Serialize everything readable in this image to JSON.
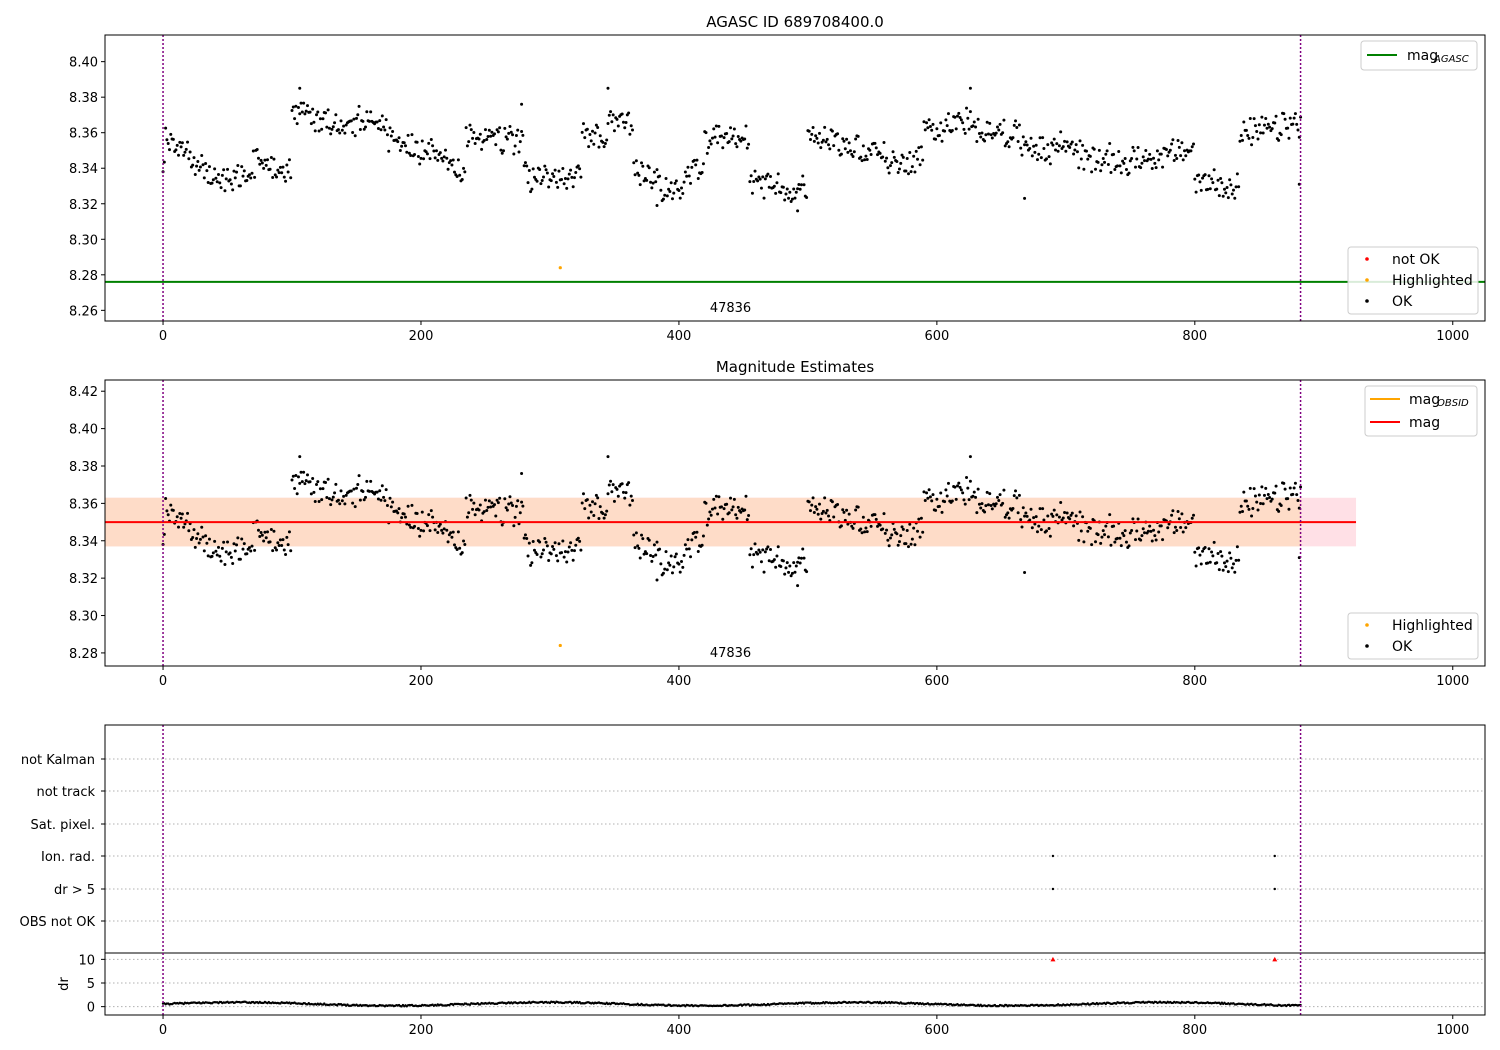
{
  "chart_data": [
    {
      "type": "scatter",
      "title": "AGASC ID 689708400.0",
      "xlim": [
        -45,
        1025
      ],
      "ylim": [
        8.254,
        8.415
      ],
      "xticks": [
        0,
        200,
        400,
        600,
        800,
        1000
      ],
      "yticks": [
        8.26,
        8.28,
        8.3,
        8.32,
        8.34,
        8.36,
        8.38,
        8.4
      ],
      "vlines": [
        0,
        882
      ],
      "hline": {
        "name": "mag",
        "sub": "AGASC",
        "value": 8.276,
        "color": "#008000"
      },
      "annotation": {
        "text": "47836",
        "x": 440,
        "y": 8.258
      },
      "legend_upper": [
        {
          "label": "mag",
          "sub": "AGASC",
          "color": "#008000"
        }
      ],
      "legend_lower": [
        {
          "label": "not OK",
          "color": "#ff0000"
        },
        {
          "label": "Highlighted",
          "color": "#ffa500"
        },
        {
          "label": "OK",
          "color": "#000000"
        }
      ],
      "highlighted": [
        [
          308,
          8.284
        ]
      ]
    },
    {
      "type": "scatter",
      "title": "Magnitude Estimates",
      "xlim": [
        -45,
        1025
      ],
      "ylim": [
        8.273,
        8.426
      ],
      "xticks": [
        0,
        200,
        400,
        600,
        800,
        1000
      ],
      "yticks": [
        8.28,
        8.3,
        8.32,
        8.34,
        8.36,
        8.38,
        8.4,
        8.42
      ],
      "vlines": [
        0,
        882
      ],
      "band_outer": {
        "x": [
          -45,
          925
        ],
        "y": [
          8.337,
          8.363
        ],
        "color": "#ffe0e6"
      },
      "band_inner": {
        "x": [
          -45,
          882
        ],
        "y": [
          8.337,
          8.363
        ],
        "color": "#fedcc8"
      },
      "hlines": [
        {
          "name": "mag",
          "value": 8.35,
          "color": "#ff0000"
        }
      ],
      "annotation": {
        "text": "47836",
        "x": 440,
        "y": 8.277
      },
      "legend_upper": [
        {
          "label": "mag",
          "sub": "OBSID",
          "color": "#ffa500"
        },
        {
          "label": "mag",
          "sub": "",
          "color": "#ff0000"
        }
      ],
      "legend_lower": [
        {
          "label": "Highlighted",
          "color": "#ffa500"
        },
        {
          "label": "OK",
          "color": "#000000"
        }
      ],
      "highlighted": [
        [
          308,
          8.284
        ]
      ]
    },
    {
      "type": "scatter",
      "xlim": [
        -45,
        1025
      ],
      "xticks": [
        0,
        200,
        400,
        600,
        800,
        1000
      ],
      "vlines": [
        0,
        882
      ],
      "flag_rows": [
        "not Kalman",
        "not track",
        "Sat. pixel.",
        "Ion. rad.",
        "dr > 5",
        "OBS not OK"
      ],
      "flag_points": [
        {
          "row": "Ion. rad.",
          "x": [
            690,
            862
          ]
        },
        {
          "row": "dr > 5",
          "x": [
            690,
            862
          ]
        }
      ],
      "dr_ylabel": "dr",
      "dr_ylim": [
        -0.5,
        10.5
      ],
      "dr_yticks": [
        0,
        5,
        10
      ],
      "dr_outliers": [
        [
          690,
          10
        ],
        [
          862,
          10
        ]
      ]
    }
  ]
}
